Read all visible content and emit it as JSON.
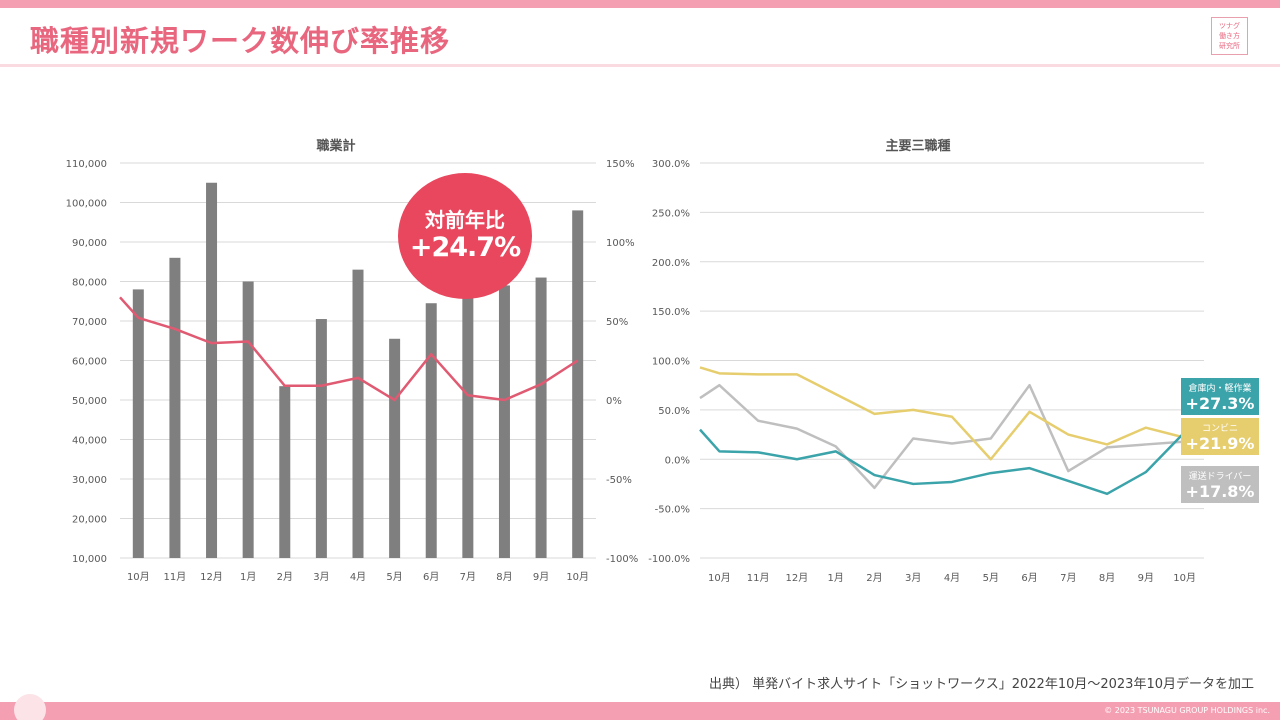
{
  "header": {
    "title": "職種別新規ワーク数伸び率推移",
    "logo_lines": [
      "ツナグ",
      "働き方",
      "研究所"
    ]
  },
  "colors": {
    "brand_pink": "#e8677f",
    "bar_gray": "#7f7f7f",
    "yoy_line": "#e05a72",
    "warehouse": "#3ba3aa",
    "convenience": "#e6cd6e",
    "driver": "#bfbfbf",
    "bubble": "#e8475e"
  },
  "highlight": {
    "label": "対前年比",
    "value": "+24.7%"
  },
  "chart_data": [
    {
      "type": "bar",
      "title": "職業計",
      "categories": [
        "10月",
        "11月",
        "12月",
        "1月",
        "2月",
        "3月",
        "4月",
        "5月",
        "6月",
        "7月",
        "8月",
        "9月",
        "10月"
      ],
      "series": [
        {
          "name": "新規ワーク数",
          "axis": "left",
          "values": [
            78000,
            86000,
            105000,
            80000,
            53500,
            70500,
            83000,
            65500,
            74500,
            76000,
            79000,
            81000,
            98000
          ]
        },
        {
          "name": "対前年比",
          "type": "line",
          "axis": "right",
          "values": [
            52,
            45,
            36,
            37,
            9,
            9,
            14,
            0,
            29,
            3,
            0,
            10,
            25
          ]
        }
      ],
      "line_start_value": 65,
      "y_left": {
        "min": 10000,
        "max": 110000,
        "step": 10000,
        "tick_labels": [
          "10,000",
          "20,000",
          "30,000",
          "40,000",
          "50,000",
          "60,000",
          "70,000",
          "80,000",
          "90,000",
          "100,000",
          "110,000"
        ]
      },
      "y_right": {
        "min": -100,
        "max": 150,
        "step": 50,
        "tick_labels": [
          "-100%",
          "-50%",
          "0%",
          "50%",
          "100%",
          "150%"
        ]
      }
    },
    {
      "type": "line",
      "title": "主要三職種",
      "categories": [
        "10月",
        "11月",
        "12月",
        "1月",
        "2月",
        "3月",
        "4月",
        "5月",
        "6月",
        "7月",
        "8月",
        "9月",
        "10月"
      ],
      "series": [
        {
          "name": "倉庫内・軽作業",
          "value_label": "+27.3%",
          "start_value": 30,
          "values": [
            8,
            7,
            0,
            8,
            -16,
            -25,
            -23,
            -14,
            -9,
            -22,
            -35,
            -13,
            27.3
          ]
        },
        {
          "name": "コンビニ",
          "value_label": "+21.9%",
          "start_value": 93,
          "values": [
            87,
            86,
            86,
            66,
            46,
            50,
            43,
            0,
            48,
            25,
            15,
            32,
            21.9
          ]
        },
        {
          "name": "運送ドライバー",
          "value_label": "+17.8%",
          "start_value": 62,
          "values": [
            75,
            39,
            31,
            13,
            -29,
            21,
            16,
            21,
            75,
            -12,
            12,
            15,
            17.8
          ]
        }
      ],
      "y": {
        "min": -100,
        "max": 300,
        "step": 50,
        "tick_labels": [
          "-100.0%",
          "-50.0%",
          "0.0%",
          "50.0%",
          "100.0%",
          "150.0%",
          "200.0%",
          "250.0%",
          "300.0%"
        ]
      }
    }
  ],
  "footer": {
    "source": "出典） 単発バイト求人サイト「ショットワークス」2022年10月～2023年10月データを加工",
    "copyright": "© 2023 TSUNAGU GROUP HOLDINGS inc."
  }
}
